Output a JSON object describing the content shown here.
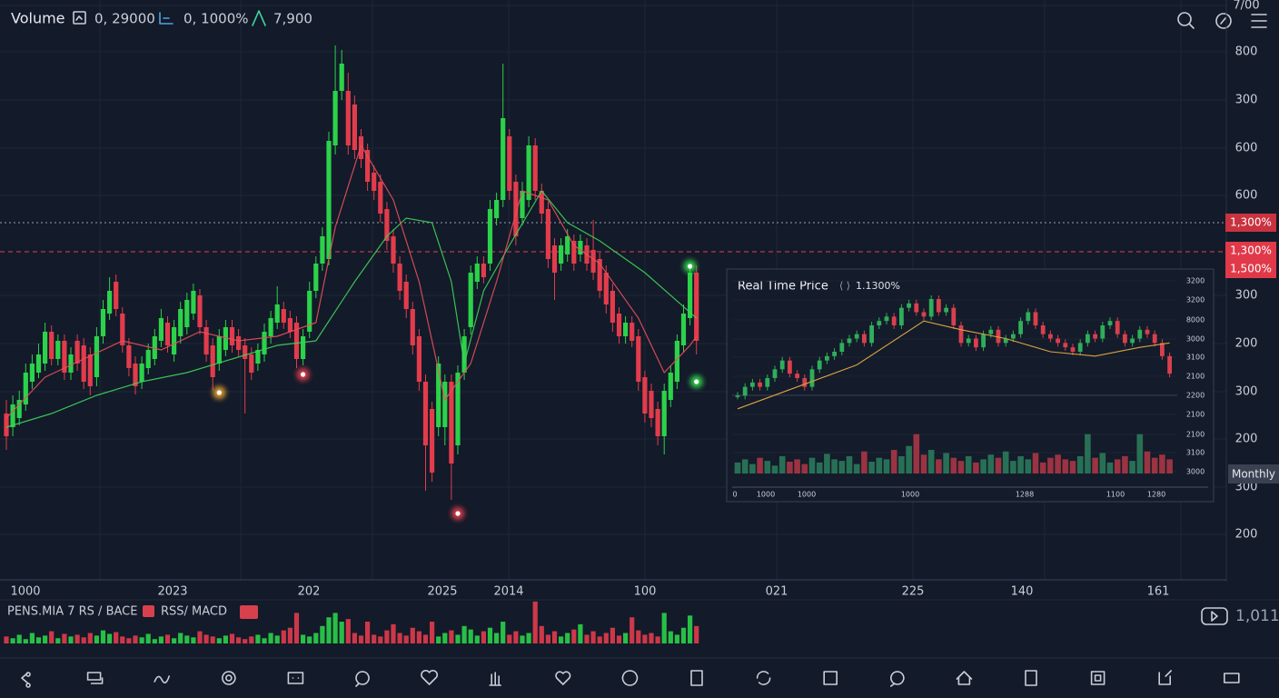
{
  "header": {
    "title": "Volume",
    "stats": [
      "0, 29000",
      "0, 1000%",
      "7,900"
    ]
  },
  "chart_data": [
    {
      "type": "candlestick",
      "open": [
        185,
        170,
        180,
        195,
        220,
        230,
        240,
        275,
        245,
        265,
        230,
        265,
        260,
        250,
        225,
        270,
        295,
        330,
        295,
        260,
        240,
        220,
        235,
        245,
        265,
        285,
        250,
        270,
        280,
        295,
        315,
        280,
        260,
        240,
        255,
        280,
        270,
        260,
        250,
        240,
        250,
        270,
        285,
        300,
        290,
        285,
        245,
        275,
        320,
        350,
        355,
        480,
        540,
        540,
        525,
        490,
        475,
        450,
        440,
        410,
        380,
        350,
        330,
        300,
        270,
        220,
        190,
        170,
        170,
        220,
        150,
        230,
        280,
        330,
        350,
        350,
        400,
        420,
        490,
        440,
        400,
        420,
        480,
        430,
        410,
        370,
        350,
        360,
        375,
        360,
        370,
        365,
        355,
        340,
        320,
        295,
        270,
        285,
        270,
        225,
        210,
        190,
        160,
        200,
        220,
        260,
        290,
        340
      ],
      "high": [
        200,
        205,
        210,
        240,
        250,
        262,
        285,
        282,
        272,
        272,
        258,
        272,
        268,
        258,
        280,
        310,
        335,
        338,
        302,
        268,
        248,
        248,
        262,
        278,
        300,
        292,
        288,
        308,
        318,
        328,
        322,
        288,
        268,
        278,
        288,
        288,
        278,
        268,
        258,
        262,
        284,
        298,
        325,
        308,
        298,
        292,
        278,
        330,
        358,
        390,
        495,
        590,
        585,
        560,
        535,
        498,
        482,
        458,
        448,
        418,
        388,
        358,
        338,
        308,
        278,
        228,
        198,
        248,
        228,
        228,
        238,
        278,
        348,
        358,
        358,
        420,
        428,
        570,
        498,
        448,
        440,
        490,
        488,
        438,
        418,
        378,
        378,
        388,
        382,
        382,
        378,
        398,
        362,
        348,
        328,
        302,
        292,
        292,
        278,
        232,
        218,
        198,
        218,
        238,
        272,
        305,
        348,
        348
      ],
      "low": [
        145,
        160,
        172,
        188,
        212,
        224,
        232,
        238,
        238,
        222,
        222,
        232,
        212,
        205,
        215,
        262,
        288,
        292,
        252,
        226,
        206,
        212,
        228,
        238,
        258,
        252,
        242,
        262,
        272,
        288,
        272,
        242,
        210,
        232,
        248,
        252,
        248,
        185,
        222,
        232,
        242,
        262,
        278,
        278,
        268,
        235,
        238,
        268,
        312,
        342,
        348,
        470,
        530,
        470,
        465,
        455,
        430,
        420,
        395,
        365,
        340,
        310,
        290,
        250,
        210,
        100,
        110,
        160,
        150,
        90,
        140,
        222,
        272,
        322,
        328,
        342,
        392,
        412,
        420,
        370,
        392,
        412,
        420,
        395,
        345,
        310,
        342,
        352,
        342,
        352,
        342,
        332,
        312,
        295,
        275,
        262,
        262,
        258,
        210,
        175,
        170,
        150,
        140,
        192,
        212,
        252,
        282,
        250
      ],
      "close": [
        160,
        195,
        200,
        230,
        240,
        250,
        275,
        245,
        265,
        230,
        250,
        240,
        220,
        215,
        270,
        300,
        320,
        300,
        260,
        235,
        215,
        240,
        255,
        270,
        290,
        260,
        280,
        300,
        310,
        320,
        280,
        250,
        225,
        270,
        280,
        260,
        255,
        245,
        230,
        255,
        275,
        290,
        305,
        285,
        275,
        245,
        270,
        320,
        350,
        380,
        485,
        540,
        570,
        480,
        475,
        465,
        440,
        430,
        405,
        375,
        350,
        320,
        300,
        260,
        220,
        150,
        120,
        240,
        220,
        130,
        230,
        270,
        340,
        350,
        335,
        410,
        420,
        510,
        430,
        380,
        430,
        480,
        430,
        405,
        355,
        340,
        370,
        380,
        350,
        375,
        350,
        340,
        320,
        305,
        285,
        270,
        285,
        265,
        220,
        185,
        180,
        160,
        210,
        230,
        265,
        295,
        340,
        265
      ],
      "ylim": [
        0,
        640
      ],
      "colors": {
        "up": "#2bd24a",
        "down": "#e23c4c"
      },
      "axis_labels": [
        "7/00",
        "800",
        "300",
        "600",
        "600",
        "300",
        "200",
        "300",
        "200",
        "300",
        "200"
      ],
      "x_labels": [
        "1000",
        "2023",
        "202",
        "2025",
        "2014",
        "100",
        "021",
        "225",
        "140",
        "161"
      ],
      "moving_averages": [
        {
          "color": "#3fd35a",
          "x": [
            0,
            7,
            14,
            21,
            28,
            35,
            42,
            48,
            54,
            59,
            62,
            66,
            69,
            71,
            74,
            78,
            83,
            87,
            92,
            99,
            107
          ],
          "values": [
            170,
            185,
            205,
            220,
            230,
            245,
            260,
            265,
            330,
            380,
            400,
            395,
            330,
            240,
            320,
            370,
            430,
            395,
            375,
            340,
            290
          ]
        },
        {
          "color": "#e8505c",
          "x": [
            0,
            6,
            12,
            18,
            24,
            30,
            36,
            42,
            48,
            51,
            55,
            60,
            64,
            68,
            72,
            76,
            80,
            84,
            88,
            92,
            98,
            102,
            106,
            107
          ],
          "values": [
            180,
            225,
            245,
            265,
            255,
            275,
            265,
            270,
            285,
            390,
            480,
            420,
            330,
            200,
            240,
            330,
            430,
            420,
            370,
            350,
            290,
            230,
            260,
            270
          ]
        }
      ],
      "markers": [
        {
          "index": 33,
          "value": 208,
          "color": "#f0a830"
        },
        {
          "index": 46,
          "value": 228,
          "color": "#f0404f"
        },
        {
          "index": 70,
          "value": 75,
          "color": "#f0404f"
        },
        {
          "index": 106,
          "value": 347,
          "color": "#35e04f"
        },
        {
          "index": 107,
          "value": 220,
          "color": "#35e04f"
        }
      ],
      "volume": {
        "values": [
          8,
          6,
          10,
          5,
          12,
          7,
          9,
          14,
          6,
          11,
          8,
          10,
          7,
          12,
          9,
          15,
          11,
          13,
          8,
          6,
          9,
          7,
          11,
          5,
          8,
          10,
          6,
          12,
          9,
          7,
          14,
          10,
          8,
          6,
          9,
          11,
          7,
          5,
          8,
          10,
          6,
          12,
          9,
          15,
          18,
          35,
          10,
          8,
          12,
          20,
          30,
          35,
          25,
          28,
          12,
          9,
          25,
          10,
          8,
          15,
          22,
          12,
          9,
          18,
          14,
          10,
          25,
          8,
          12,
          15,
          10,
          20,
          16,
          9,
          14,
          18,
          12,
          25,
          10,
          14,
          9,
          12,
          48,
          20,
          10,
          14,
          8,
          12,
          16,
          22,
          10,
          14,
          8,
          12,
          18,
          9,
          12,
          30,
          15,
          10,
          12,
          8,
          35,
          14,
          10,
          18,
          32,
          20
        ],
        "ylim": [
          0,
          50
        ]
      },
      "price_badges": [
        "1,300%",
        "1,300%",
        "1,500%"
      ],
      "timeframe": "Monthly"
    },
    {
      "type": "mini-candlestick",
      "title": "Real Time Price",
      "change": "1.1300%",
      "close": [
        200,
        210,
        215,
        210,
        220,
        230,
        240,
        225,
        220,
        210,
        230,
        240,
        245,
        250,
        260,
        265,
        270,
        260,
        280,
        285,
        290,
        280,
        300,
        305,
        295,
        290,
        310,
        295,
        300,
        280,
        260,
        265,
        255,
        270,
        275,
        260,
        265,
        270,
        285,
        295,
        280,
        270,
        265,
        260,
        255,
        250,
        260,
        270,
        265,
        280,
        285,
        270,
        260,
        265,
        275,
        270,
        260,
        245,
        225
      ],
      "ylim": [
        190,
        340
      ],
      "colors": {
        "up": "#2fae5a",
        "down": "#d8404e"
      },
      "axis_labels": [
        "3200",
        "3200",
        "8000",
        "3000",
        "3100",
        "2100",
        "2200",
        "2100",
        "2100",
        "3100",
        "3000"
      ],
      "x_labels": [
        "0",
        "1000",
        "1000",
        "1000",
        "1288",
        "1100",
        "1280"
      ],
      "moving_average": {
        "color": "#d9a441",
        "x": [
          0,
          8,
          16,
          25,
          30,
          36,
          42,
          48,
          54,
          58
        ],
        "values": [
          185,
          210,
          235,
          285,
          275,
          265,
          250,
          245,
          255,
          260
        ]
      },
      "volume": {
        "values": [
          14,
          18,
          12,
          20,
          16,
          10,
          22,
          15,
          18,
          12,
          20,
          14,
          25,
          18,
          16,
          22,
          12,
          28,
          15,
          20,
          18,
          30,
          22,
          35,
          50,
          24,
          30,
          18,
          26,
          20,
          16,
          22,
          14,
          18,
          24,
          20,
          28,
          16,
          22,
          18,
          26,
          14,
          20,
          24,
          18,
          16,
          22,
          50,
          20,
          26,
          14,
          18,
          22,
          16,
          50,
          28,
          20,
          24,
          18
        ],
        "ylim": [
          0,
          60
        ]
      }
    }
  ],
  "indicator_bar": {
    "labels": [
      "PENS.MIA 7 RS / BACE",
      "RSS/ MACD"
    ],
    "count": "1,011"
  }
}
